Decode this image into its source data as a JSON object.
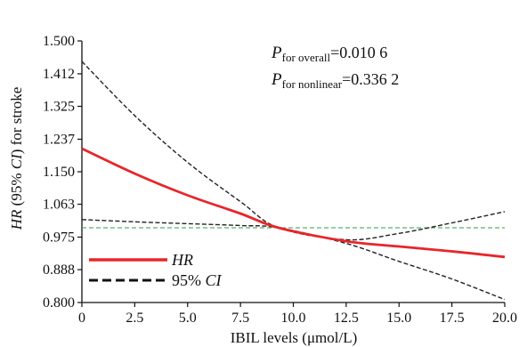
{
  "chart_data": {
    "type": "line",
    "title": "",
    "xlabel": "IBIL levels (μmol/L)",
    "ylabel": {
      "part1": "HR",
      "part2": " (95% ",
      "part3": "CI",
      "part4": ") for stroke"
    },
    "xlim": [
      0,
      20
    ],
    "ylim": [
      0.8,
      1.5
    ],
    "x_ticks": [
      "0",
      "2.5",
      "5.0",
      "7.5",
      "10.0",
      "12.5",
      "15.0",
      "17.5",
      "20.0"
    ],
    "x_tick_values": [
      0,
      2.5,
      5,
      7.5,
      10,
      12.5,
      15,
      17.5,
      20
    ],
    "y_ticks": [
      "0.800",
      "0.888",
      "0.975",
      "1.063",
      "1.150",
      "1.237",
      "1.325",
      "1.412",
      "1.500"
    ],
    "y_tick_values": [
      0.8,
      0.888,
      0.975,
      1.063,
      1.15,
      1.237,
      1.325,
      1.412,
      1.5
    ],
    "reference_line": {
      "y": 1.0,
      "color": "#2e9e4a"
    },
    "x": [
      0,
      2.5,
      5,
      7.5,
      9.3,
      12.5,
      15,
      17.5,
      20
    ],
    "series": [
      {
        "name": "HR",
        "style": "solid",
        "color": "#e8262a",
        "values": [
          1.212,
          1.145,
          1.087,
          1.038,
          1.0,
          0.964,
          0.95,
          0.937,
          0.922
        ]
      },
      {
        "name": "95% CI",
        "style": "dashed",
        "color": "#222222",
        "role": "upper",
        "values": [
          1.445,
          1.3,
          1.175,
          1.07,
          1.0,
          0.968,
          0.985,
          1.013,
          1.043
        ]
      },
      {
        "name": "95% CI",
        "style": "dashed",
        "color": "#222222",
        "role": "lower",
        "values": [
          1.022,
          1.016,
          1.011,
          1.006,
          1.0,
          0.958,
          0.91,
          0.863,
          0.808
        ]
      }
    ],
    "legend": {
      "position": "bottom-left",
      "entries": [
        {
          "label": "HR",
          "style": "solid",
          "color": "#e8262a"
        },
        {
          "label": "95% CI",
          "style": "dashed",
          "color": "#222222"
        }
      ]
    },
    "annotations": {
      "p_overall": {
        "p": "P",
        "sub": "for overall",
        "value": "=0.010 6"
      },
      "p_nonlinear": {
        "p": "P",
        "sub": "for nonlinear",
        "value": "=0.336 2"
      }
    },
    "grid": false
  }
}
